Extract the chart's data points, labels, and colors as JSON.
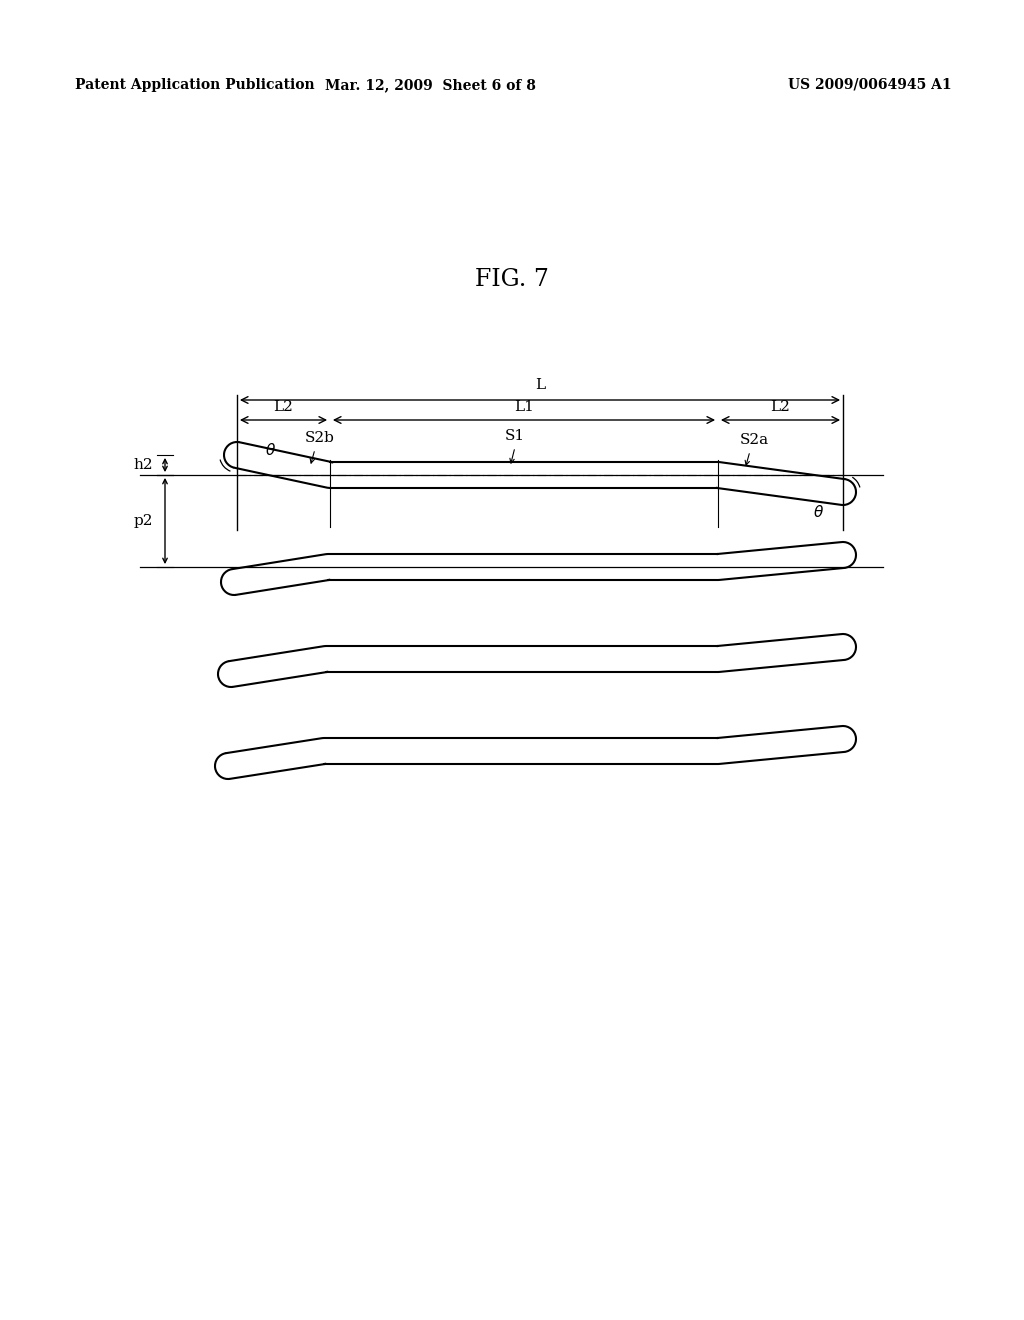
{
  "title": "FIG. 7",
  "header_left": "Patent Application Publication",
  "header_mid": "Mar. 12, 2009  Sheet 6 of 8",
  "header_right": "US 2009/0064945 A1",
  "bg_color": "#ffffff",
  "line_color": "#000000",
  "fig_title_fontsize": 17,
  "header_fontsize": 10,
  "label_fontsize": 12,
  "annotation_fontsize": 11
}
